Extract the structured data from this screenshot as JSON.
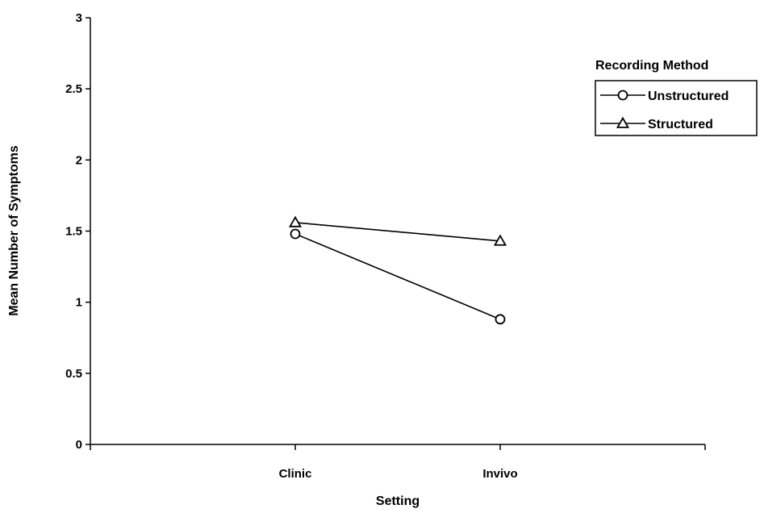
{
  "chart_data": {
    "type": "line",
    "categories": [
      "Clinic",
      "Invivo"
    ],
    "series": [
      {
        "name": "Unstructured",
        "values": [
          1.48,
          0.88
        ],
        "marker": "circle"
      },
      {
        "name": "Structured",
        "values": [
          1.56,
          1.43
        ],
        "marker": "triangle"
      }
    ],
    "xlabel": "Setting",
    "ylabel": "Mean Number of Symptoms",
    "ylim": [
      0,
      3
    ],
    "yticks": [
      "0",
      "0.5",
      "1",
      "1.5",
      "2",
      "2.5",
      "3"
    ],
    "legend": {
      "title": "Recording Method",
      "placement": "top-right"
    },
    "grid": false,
    "line_color": "#000000"
  }
}
